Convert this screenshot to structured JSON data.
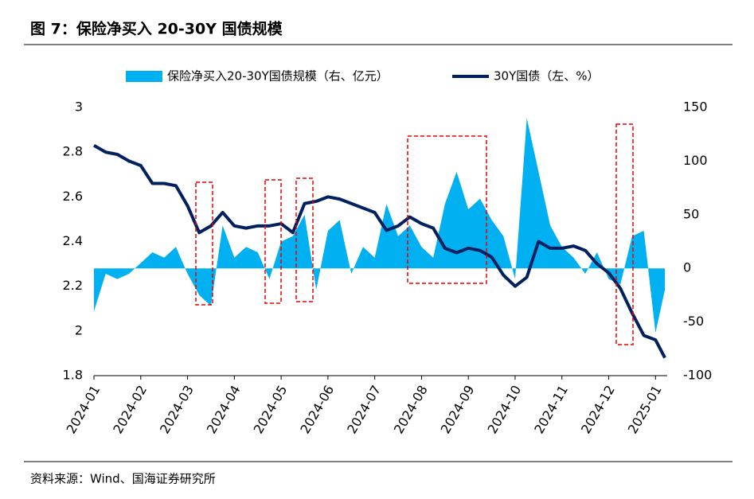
{
  "chart_data": {
    "type": "dual",
    "title": "图 7：保险净买入 20-30Y 国债规模",
    "source": "资料来源：Wind、国海证券研究所",
    "x": [
      0,
      0.25,
      0.5,
      0.75,
      1,
      1.25,
      1.5,
      1.75,
      2,
      2.25,
      2.5,
      2.75,
      3,
      3.25,
      3.5,
      3.75,
      4,
      4.25,
      4.5,
      4.75,
      5,
      5.25,
      5.5,
      5.75,
      6,
      6.25,
      6.5,
      6.75,
      7,
      7.25,
      7.5,
      7.75,
      8,
      8.25,
      8.5,
      8.75,
      9,
      9.25,
      9.5,
      9.75,
      10,
      10.25,
      10.5,
      10.75,
      11,
      11.25,
      11.5,
      11.75,
      12,
      12.2
    ],
    "xlim": [
      0,
      12.25
    ],
    "xticks": [
      {
        "value": 0,
        "label": "2024-01"
      },
      {
        "value": 1,
        "label": "2024-02"
      },
      {
        "value": 2,
        "label": "2024-03"
      },
      {
        "value": 3,
        "label": "2024-04"
      },
      {
        "value": 4,
        "label": "2024-05"
      },
      {
        "value": 5,
        "label": "2024-06"
      },
      {
        "value": 6,
        "label": "2024-07"
      },
      {
        "value": 7,
        "label": "2024-08"
      },
      {
        "value": 8,
        "label": "2024-09"
      },
      {
        "value": 9,
        "label": "2024-10"
      },
      {
        "value": 10,
        "label": "2024-11"
      },
      {
        "value": 11,
        "label": "2024-12"
      },
      {
        "value": 12,
        "label": "2025-01"
      }
    ],
    "ylim": [
      1.8,
      3
    ],
    "yticks": [
      {
        "value": 1.8,
        "label": "1.8"
      },
      2,
      2.2,
      2.4,
      2.6,
      2.8,
      3
    ],
    "y2lim": [
      -100,
      150
    ],
    "y2ticks": [
      -100,
      -50,
      0,
      50,
      100,
      150
    ],
    "series": [
      {
        "name": "保险净买入20-30Y国债规模（右、亿元）",
        "color": "#00b0f0",
        "axis": "y2",
        "kind": "area",
        "values": [
          -40,
          -5,
          -10,
          -5,
          5,
          15,
          10,
          20,
          -5,
          -25,
          -35,
          40,
          10,
          20,
          15,
          -10,
          25,
          30,
          50,
          -20,
          35,
          45,
          -5,
          20,
          10,
          60,
          30,
          40,
          20,
          10,
          60,
          90,
          55,
          65,
          45,
          30,
          -10,
          140,
          90,
          40,
          20,
          10,
          -5,
          15,
          -10,
          -15,
          30,
          35,
          -60,
          -20
        ]
      },
      {
        "name": "30Y国债（左、%）",
        "color": "#002060",
        "axis": "y",
        "kind": "line",
        "values": [
          2.83,
          2.8,
          2.79,
          2.76,
          2.74,
          2.66,
          2.66,
          2.65,
          2.56,
          2.44,
          2.47,
          2.53,
          2.47,
          2.46,
          2.47,
          2.47,
          2.48,
          2.44,
          2.57,
          2.58,
          2.6,
          2.59,
          2.57,
          2.55,
          2.53,
          2.45,
          2.47,
          2.51,
          2.48,
          2.46,
          2.37,
          2.35,
          2.37,
          2.36,
          2.33,
          2.25,
          2.2,
          2.24,
          2.4,
          2.37,
          2.37,
          2.38,
          2.36,
          2.3,
          2.26,
          2.19,
          2.08,
          1.98,
          1.96,
          1.88
        ]
      }
    ]
  }
}
